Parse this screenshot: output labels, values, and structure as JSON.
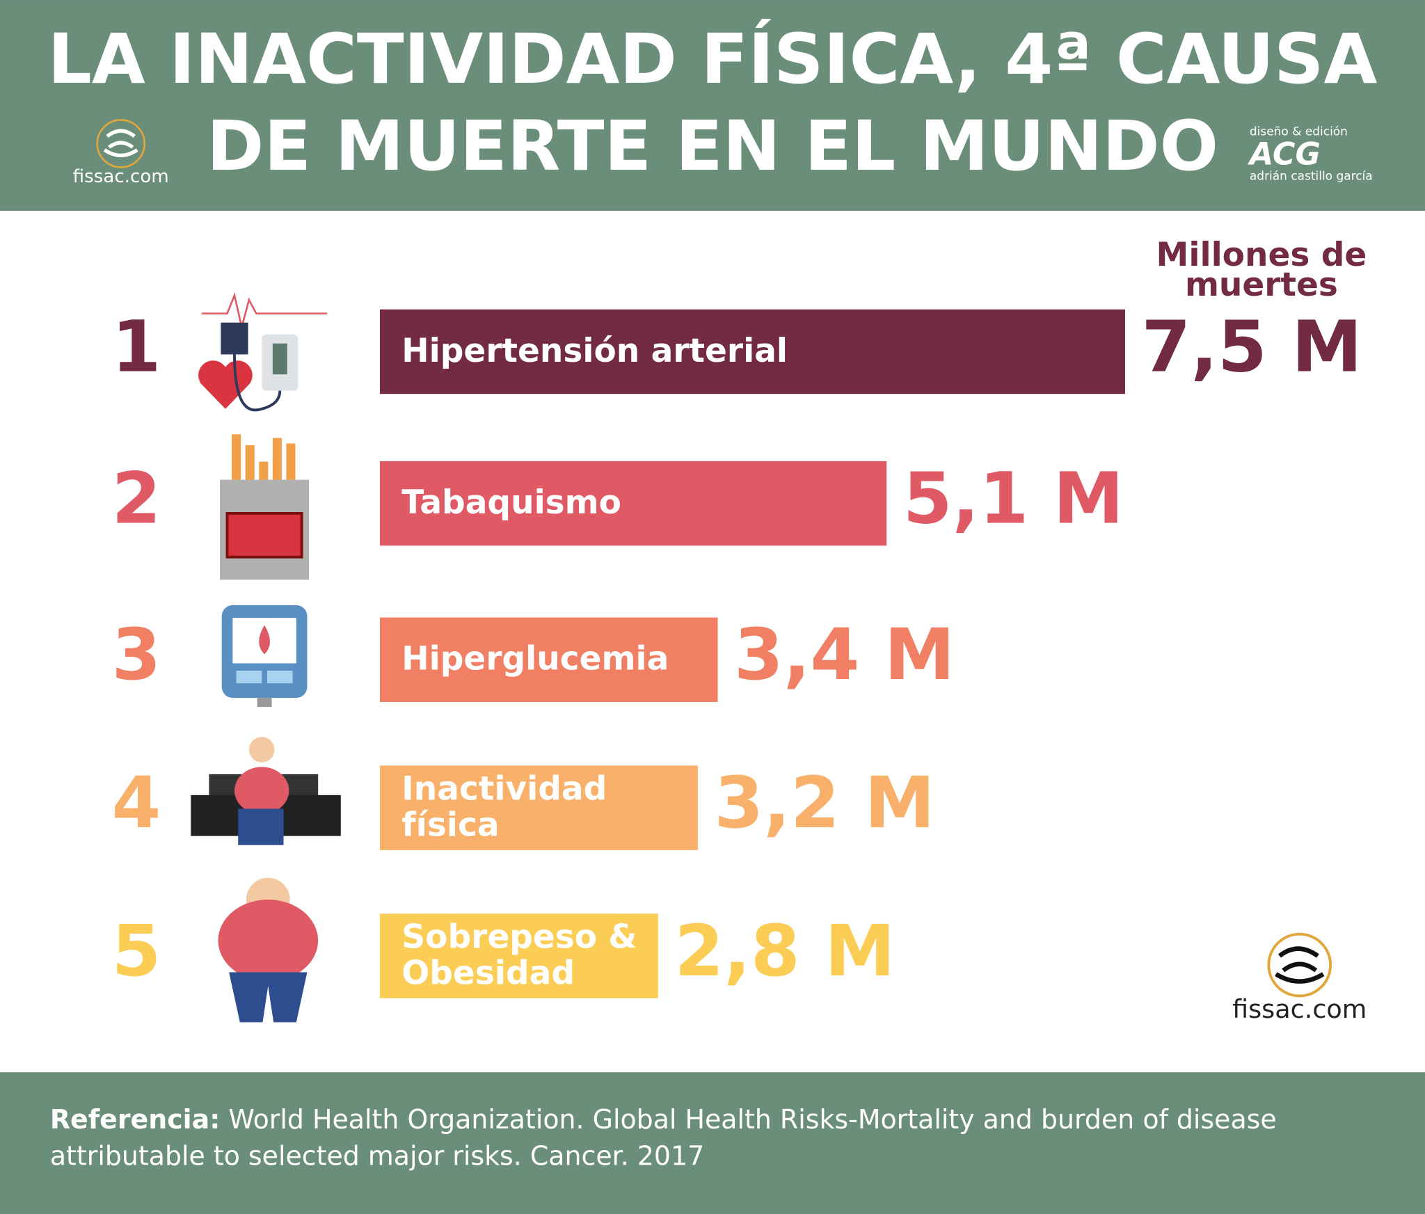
{
  "chart_data": {
    "type": "bar",
    "orientation": "horizontal",
    "title": [
      "LA INACTIVIDAD FÍSICA, 4ª CAUSA",
      "DE MUERTE EN EL MUNDO"
    ],
    "value_axis_label": [
      "Millones de",
      "muertes"
    ],
    "ranks": [
      1,
      2,
      3,
      4,
      5
    ],
    "categories": [
      "Hipertensión arterial",
      "Tabaquismo",
      "Hiperglucemia",
      "Inactividad física",
      "Sobrepeso & Obesidad"
    ],
    "values": [
      7.5,
      5.1,
      3.4,
      3.2,
      2.8
    ],
    "value_labels": [
      "7,5 M",
      "5,1 M",
      "3,4 M",
      "3,2 M",
      "2,8 M"
    ],
    "colors": [
      "#722a45",
      "#e05a66",
      "#f07f64",
      "#f9b06b",
      "#fbcd55"
    ]
  },
  "branding": {
    "site": "fissac.com",
    "site_bottom": "fissac.com",
    "design_credit": "diseño & edición",
    "design_logo": "ACG",
    "designer": "adrián castillo garcía"
  },
  "footer": {
    "reference_label": "Referencia:",
    "reference_text": "World Health Organization. Global Health Risks-Mortality and burden of disease attributable to selected major risks. Cancer. 2017"
  }
}
